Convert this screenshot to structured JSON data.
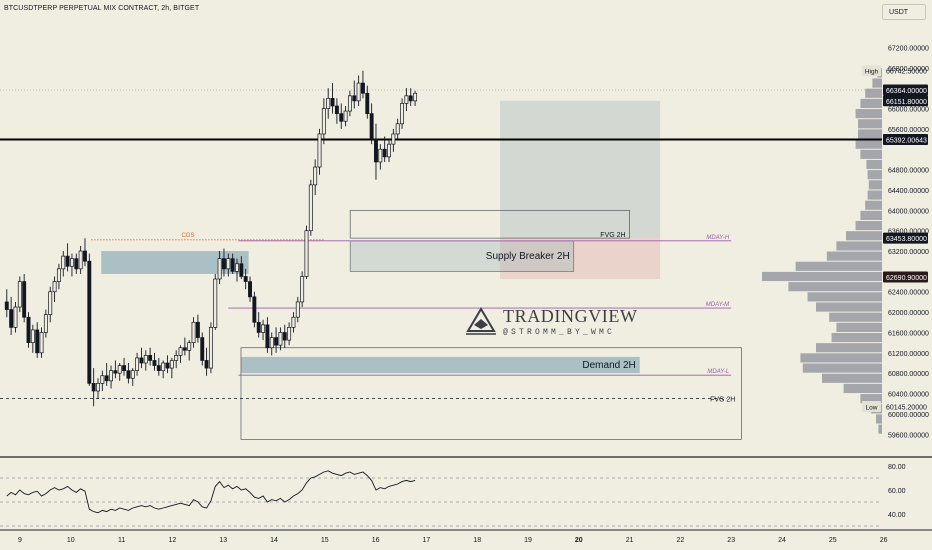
{
  "header": {
    "symbol_title": "BTCUSDTPERP PERPETUAL MIX CONTRACT, 2h, BITGET",
    "currency_button": "USDT"
  },
  "watermark": {
    "title": "TRADINGVIEW",
    "subtitle": "@STROMM_BY_WMC"
  },
  "colors": {
    "background": "#f0ede1",
    "candle": "#131722",
    "supply_zone": "#9fb7be",
    "demand_zone": "#9fb7be",
    "target_box": "#c9d1cc",
    "stop_box": "#e8c9c3",
    "level_purple": "#9b5fa8",
    "cos_orange": "#e06b2a",
    "volume_profile": "#8b8e99"
  },
  "chart_data": {
    "type": "candlestick",
    "y_axis_ticks": [
      "67200.00000",
      "66800.00000",
      "66000.00000",
      "65600.00000",
      "64800.00000",
      "64400.00000",
      "64000.00000",
      "63600.00000",
      "63200.00000",
      "62400.00000",
      "62000.00000",
      "61600.00000",
      "61200.00000",
      "60800.00000",
      "60400.00000",
      "60000.00000",
      "59600.00000"
    ],
    "y_axis_tick_values": [
      67200,
      66800,
      66000,
      65600,
      64800,
      64400,
      64000,
      63600,
      63200,
      62400,
      62000,
      61600,
      61200,
      60800,
      60400,
      60000,
      59600
    ],
    "x_axis_ticks": [
      "9",
      "10",
      "11",
      "12",
      "13",
      "14",
      "15",
      "16",
      "17",
      "18",
      "19",
      "20",
      "21",
      "22",
      "23",
      "24",
      "25",
      "26"
    ],
    "x_axis_bold": [
      "20"
    ],
    "ylim": [
      59330,
      67700
    ],
    "price_labels": [
      {
        "text": "66742.50000",
        "value": 66742.5,
        "side_label": "High",
        "style": "plain"
      },
      {
        "text": "66364.00000",
        "value": 66364,
        "style": "dark"
      },
      {
        "text": "66151.80000",
        "value": 66151.8,
        "style": "dark"
      },
      {
        "text": "65392.00643",
        "value": 65392.00643,
        "style": "dark"
      },
      {
        "text": "63453.80000",
        "value": 63453.8,
        "style": "dark"
      },
      {
        "text": "62690.90000",
        "value": 62690.9,
        "style": "red"
      },
      {
        "text": "60145.20000",
        "value": 60145.2,
        "side_label": "Low",
        "style": "plain"
      }
    ],
    "key_level": 65392.00643,
    "zones": [
      {
        "name": "supply",
        "label": "",
        "x": [
          10.6,
          13.5
        ],
        "y": [
          62750,
          63200
        ]
      },
      {
        "name": "supply-breaker",
        "label": "Supply Breaker 2H",
        "x": [
          15.5,
          19.9
        ],
        "y": [
          62800,
          63400
        ]
      },
      {
        "name": "demand",
        "label": "Demand 2H",
        "x": [
          13.35,
          21.2
        ],
        "y": [
          60800,
          61120
        ]
      },
      {
        "name": "fvg-top",
        "label": "FVG 2H",
        "x": [
          15.5,
          21.0
        ],
        "y": [
          63453.8,
          64000
        ]
      },
      {
        "name": "fvg-bottom",
        "label": "FVG 2H",
        "x": [
          13.35,
          23.2
        ],
        "y": [
          59500,
          61300
        ]
      }
    ],
    "position_tool": {
      "x": [
        18.45,
        21.6
      ],
      "target": [
        63453.8,
        66150
      ],
      "stop": [
        62650,
        63453.8
      ]
    },
    "purple_levels": [
      {
        "label": "MDAY-H",
        "value": 63400,
        "x": [
          13.3,
          23.0
        ]
      },
      {
        "label": "MDAY-M",
        "value": 62080,
        "x": [
          13.1,
          23.0
        ]
      },
      {
        "label": "MDAY-L",
        "value": 60760,
        "x": [
          13.3,
          23.0
        ]
      }
    ],
    "dashed_levels": [
      {
        "label": "FVG 2H",
        "value": 60300,
        "x": [
          8.6,
          23.5
        ]
      }
    ],
    "cos": {
      "label": "COS",
      "value": 63420,
      "x": [
        10.4,
        15.0
      ]
    },
    "candles": [
      [
        62200,
        62450,
        61900,
        62050
      ],
      [
        62050,
        62300,
        61550,
        61700
      ],
      [
        61700,
        62200,
        61600,
        62100
      ],
      [
        62100,
        62700,
        62000,
        62600
      ],
      [
        62600,
        62750,
        61800,
        61900
      ],
      [
        61900,
        62000,
        61300,
        61400
      ],
      [
        61400,
        61750,
        61200,
        61650
      ],
      [
        61650,
        61800,
        61100,
        61200
      ],
      [
        61200,
        61700,
        61100,
        61600
      ],
      [
        61600,
        62050,
        61500,
        61950
      ],
      [
        61950,
        62500,
        61800,
        62400
      ],
      [
        62400,
        62700,
        62200,
        62600
      ],
      [
        62600,
        62950,
        62450,
        62850
      ],
      [
        62850,
        63200,
        62700,
        63100
      ],
      [
        63100,
        63350,
        62800,
        62900
      ],
      [
        62900,
        63150,
        62700,
        63050
      ],
      [
        63050,
        63150,
        62750,
        62850
      ],
      [
        62850,
        63300,
        62750,
        63200
      ],
      [
        63200,
        63450,
        62900,
        63000
      ],
      [
        63000,
        63150,
        60550,
        60600
      ],
      [
        60600,
        60900,
        60150,
        60450
      ],
      [
        60450,
        60700,
        60300,
        60600
      ],
      [
        60600,
        60850,
        60450,
        60750
      ],
      [
        60750,
        61000,
        60550,
        60650
      ],
      [
        60650,
        60950,
        60500,
        60850
      ],
      [
        60850,
        61050,
        60700,
        60800
      ],
      [
        60800,
        61000,
        60650,
        60950
      ],
      [
        60950,
        61100,
        60750,
        60850
      ],
      [
        60850,
        61000,
        60600,
        60700
      ],
      [
        60700,
        60900,
        60550,
        60850
      ],
      [
        60850,
        61200,
        60750,
        61100
      ],
      [
        61100,
        61300,
        60900,
        61000
      ],
      [
        61000,
        61250,
        60850,
        61150
      ],
      [
        61150,
        61300,
        60950,
        61050
      ],
      [
        61050,
        61200,
        60850,
        60950
      ],
      [
        60950,
        61100,
        60750,
        60850
      ],
      [
        60850,
        61050,
        60700,
        61000
      ],
      [
        61000,
        61150,
        60800,
        60900
      ],
      [
        60900,
        61100,
        60700,
        61050
      ],
      [
        61050,
        61250,
        60900,
        61150
      ],
      [
        61150,
        61350,
        61000,
        61300
      ],
      [
        61300,
        61500,
        61150,
        61250
      ],
      [
        61250,
        61450,
        61050,
        61400
      ],
      [
        61400,
        61900,
        61300,
        61800
      ],
      [
        61800,
        61950,
        61400,
        61500
      ],
      [
        61500,
        61600,
        60950,
        61050
      ],
      [
        61050,
        61300,
        60750,
        60900
      ],
      [
        60900,
        61800,
        60800,
        61700
      ],
      [
        61700,
        62750,
        61650,
        62650
      ],
      [
        62650,
        63200,
        62550,
        63050
      ],
      [
        63050,
        63250,
        62700,
        62850
      ],
      [
        62850,
        63150,
        62700,
        63050
      ],
      [
        63050,
        63150,
        62750,
        62800
      ],
      [
        62800,
        63050,
        62600,
        62950
      ],
      [
        62950,
        63100,
        62650,
        62700
      ],
      [
        62700,
        62850,
        62450,
        62600
      ],
      [
        62600,
        62700,
        62200,
        62300
      ],
      [
        62300,
        62400,
        61700,
        61800
      ],
      [
        61800,
        62000,
        61500,
        61600
      ],
      [
        61600,
        61850,
        61450,
        61750
      ],
      [
        61750,
        61900,
        61200,
        61300
      ],
      [
        61300,
        61600,
        61150,
        61500
      ],
      [
        61500,
        61700,
        61200,
        61350
      ],
      [
        61350,
        61700,
        61250,
        61600
      ],
      [
        61600,
        61750,
        61300,
        61450
      ],
      [
        61450,
        61800,
        61350,
        61700
      ],
      [
        61700,
        62000,
        61600,
        61900
      ],
      [
        61900,
        62300,
        61800,
        62200
      ],
      [
        62200,
        62800,
        62100,
        62700
      ],
      [
        62700,
        63700,
        62650,
        63600
      ],
      [
        63600,
        64600,
        63500,
        64500
      ],
      [
        64500,
        65000,
        64300,
        64850
      ],
      [
        64850,
        65600,
        64700,
        65500
      ],
      [
        65500,
        66200,
        65300,
        66000
      ],
      [
        66000,
        66400,
        65800,
        66200
      ],
      [
        66200,
        66500,
        65900,
        66050
      ],
      [
        66050,
        66200,
        65700,
        65900
      ],
      [
        65900,
        66100,
        65600,
        65750
      ],
      [
        65750,
        66050,
        65650,
        65950
      ],
      [
        65950,
        66350,
        65850,
        66250
      ],
      [
        66250,
        66550,
        66000,
        66150
      ],
      [
        66150,
        66650,
        66050,
        66500
      ],
      [
        66500,
        66742.5,
        66200,
        66300
      ],
      [
        66300,
        66450,
        65800,
        65900
      ],
      [
        65900,
        66100,
        65300,
        65400
      ],
      [
        65400,
        65700,
        64600,
        64950
      ],
      [
        64950,
        65300,
        64800,
        65200
      ],
      [
        65200,
        65450,
        64950,
        65050
      ],
      [
        65050,
        65400,
        64950,
        65300
      ],
      [
        65300,
        65600,
        65150,
        65500
      ],
      [
        65500,
        65800,
        65400,
        65700
      ],
      [
        65700,
        66200,
        65600,
        66100
      ],
      [
        66100,
        66400,
        65950,
        66250
      ],
      [
        66250,
        66400,
        66050,
        66150
      ],
      [
        66150,
        66350,
        66050,
        66300
      ]
    ],
    "rsi": {
      "y_axis_ticks": [
        "80.00",
        "60.00",
        "40.00"
      ],
      "y_axis_tick_values": [
        80,
        60,
        40
      ],
      "ylim": [
        30,
        85
      ],
      "bands": [
        70,
        50,
        30
      ],
      "values": [
        55,
        58,
        56,
        60,
        57,
        56,
        58,
        59,
        55,
        57,
        60,
        62,
        60,
        61,
        63,
        60,
        58,
        61,
        59,
        44,
        42,
        41,
        43,
        42,
        44,
        43,
        45,
        44,
        43,
        45,
        46,
        47,
        46,
        47,
        45,
        44,
        45,
        46,
        47,
        48,
        49,
        48,
        47,
        52,
        50,
        46,
        45,
        51,
        63,
        67,
        62,
        64,
        61,
        63,
        60,
        61,
        58,
        54,
        53,
        55,
        50,
        52,
        51,
        53,
        50,
        52,
        55,
        57,
        60,
        66,
        70,
        71,
        73,
        75,
        76,
        74,
        73,
        72,
        74,
        75,
        73,
        74,
        75,
        72,
        68,
        60,
        62,
        61,
        63,
        64,
        65,
        67,
        68,
        67,
        68
      ]
    },
    "volume_profile": [
      [
        59700,
        0.03
      ],
      [
        59900,
        0.05
      ],
      [
        60100,
        0.09
      ],
      [
        60300,
        0.18
      ],
      [
        60500,
        0.32
      ],
      [
        60700,
        0.5
      ],
      [
        60900,
        0.66
      ],
      [
        61100,
        0.68
      ],
      [
        61300,
        0.55
      ],
      [
        61500,
        0.42
      ],
      [
        61700,
        0.38
      ],
      [
        61900,
        0.44
      ],
      [
        62100,
        0.55
      ],
      [
        62300,
        0.62
      ],
      [
        62500,
        0.78
      ],
      [
        62700,
        1.0
      ],
      [
        62900,
        0.72
      ],
      [
        63100,
        0.46
      ],
      [
        63300,
        0.38
      ],
      [
        63500,
        0.3
      ],
      [
        63700,
        0.22
      ],
      [
        63900,
        0.18
      ],
      [
        64100,
        0.14
      ],
      [
        64300,
        0.12
      ],
      [
        64500,
        0.11
      ],
      [
        64700,
        0.12
      ],
      [
        64900,
        0.13
      ],
      [
        65100,
        0.18
      ],
      [
        65300,
        0.22
      ],
      [
        65500,
        0.2
      ],
      [
        65700,
        0.2
      ],
      [
        65900,
        0.22
      ],
      [
        66100,
        0.18
      ],
      [
        66300,
        0.14
      ],
      [
        66500,
        0.08
      ],
      [
        66700,
        0.04
      ]
    ]
  }
}
